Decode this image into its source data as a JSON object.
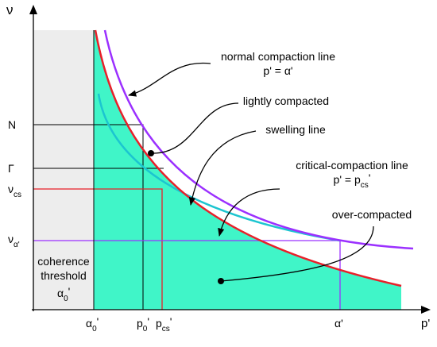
{
  "axis": {
    "y": "ν",
    "x": "p'"
  },
  "y_labels": [
    {
      "base": "N"
    },
    {
      "base": "Γ"
    },
    {
      "base": "ν",
      "sub": "cs"
    },
    {
      "base": "ν",
      "sub": "α'"
    }
  ],
  "x_labels": [
    {
      "base": "α",
      "sub": "0",
      "prime": "'"
    },
    {
      "base": "p",
      "sub": "0",
      "prime": "'"
    },
    {
      "base": "p",
      "sub": "cs",
      "prime": "'"
    },
    {
      "base": "α'"
    }
  ],
  "annotations": {
    "ncl": {
      "title": "normal compaction line",
      "formula": "p' = α'"
    },
    "lightly": "lightly compacted",
    "swelling": "swelling line",
    "ccl": {
      "title": "critical-compaction line",
      "formula_base": "p' = p",
      "formula_sub": "cs",
      "formula_prime": "'"
    },
    "over": "over-compacted",
    "coherence": {
      "line1": "coherence",
      "line2": "threshold",
      "symbol_base": "α",
      "symbol_sub": "0",
      "symbol_prime": "'"
    }
  }
}
